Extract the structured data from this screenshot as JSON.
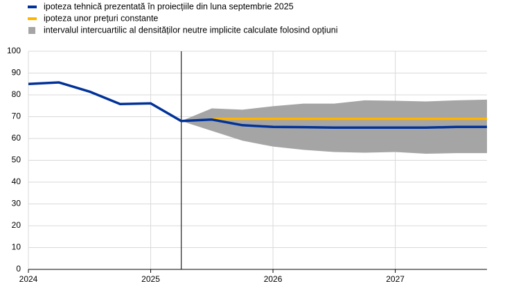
{
  "chart_data": {
    "type": "line",
    "x": [
      2024,
      2024.25,
      2024.5,
      2024.75,
      2025,
      2025.25,
      2025.5,
      2025.75,
      2026,
      2026.25,
      2026.5,
      2026.75,
      2027,
      2027.25,
      2027.5,
      2027.75
    ],
    "series": [
      {
        "name": "ipoteza tehnică prezentată în proiecțiile din luna septembrie 2025",
        "color": "#003299",
        "values": [
          85,
          85.7,
          81.5,
          75.8,
          76.1,
          68,
          68.7,
          66.1,
          65.3,
          65.2,
          65,
          65,
          65,
          65,
          65.3,
          65.3
        ]
      },
      {
        "name": "ipoteza unor prețuri constante",
        "color": "#ffb400",
        "values": [
          null,
          null,
          null,
          null,
          null,
          null,
          69,
          69,
          69,
          69,
          69,
          69,
          69,
          69,
          69,
          69
        ]
      }
    ],
    "band": {
      "name": "intervalul intercuartilic al densităților neutre implicite calculate folosind opțiuni",
      "color": "#a5a5a5",
      "lower": [
        null,
        null,
        null,
        null,
        null,
        68,
        63.5,
        59,
        56.3,
        54.8,
        53.8,
        53.5,
        53.8,
        53,
        53.3,
        53.3
      ],
      "upper": [
        null,
        null,
        null,
        null,
        null,
        68,
        73.8,
        73.2,
        74.8,
        76,
        76,
        77.5,
        77.3,
        77,
        77.5,
        77.8
      ]
    },
    "vline_x": 2025.25,
    "xlim": [
      2024,
      2027.75
    ],
    "xticks": [
      2024,
      2025,
      2026,
      2027
    ],
    "ylim": [
      0,
      100
    ],
    "yticks": [
      0,
      10,
      20,
      30,
      40,
      50,
      60,
      70,
      80,
      90,
      100
    ],
    "grid": true
  }
}
